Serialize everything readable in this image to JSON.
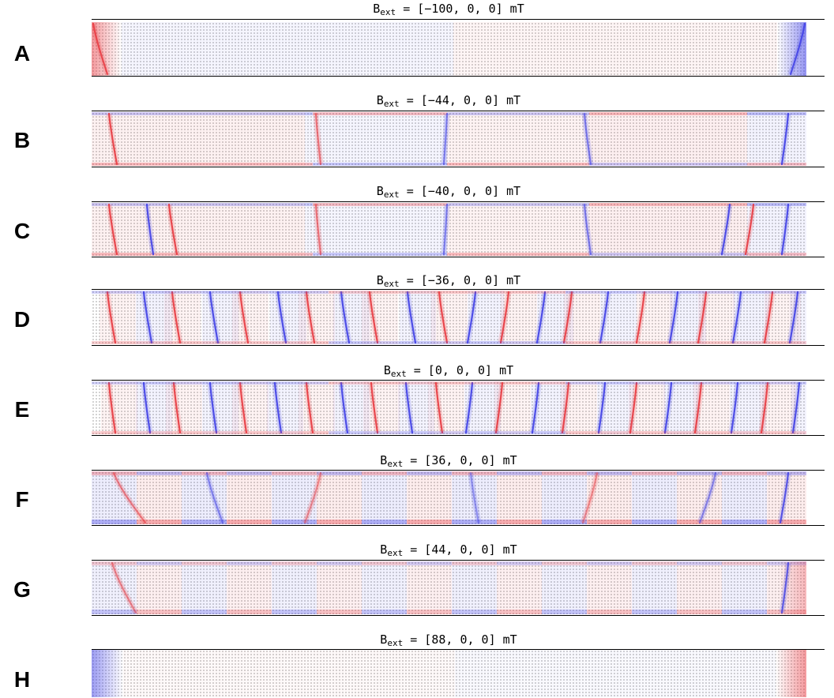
{
  "panels": [
    {
      "letter": "A",
      "label": "B",
      "sub": "ext",
      "eq": " = [−100, 0, 0] mT",
      "pattern": "edges-A"
    },
    {
      "letter": "B",
      "label": "B",
      "sub": "ext",
      "eq": " = [−44, 0, 0] mT",
      "pattern": "sparse-B"
    },
    {
      "letter": "C",
      "label": "B",
      "sub": "ext",
      "eq": " = [−40, 0, 0] mT",
      "pattern": "sparse-C"
    },
    {
      "letter": "D",
      "label": "B",
      "sub": "ext",
      "eq": " = [−36, 0, 0] mT",
      "pattern": "dense-D"
    },
    {
      "letter": "E",
      "label": "B",
      "sub": "ext",
      "eq": " = [0, 0, 0] mT",
      "pattern": "dense-E"
    },
    {
      "letter": "F",
      "label": "B",
      "sub": "ext",
      "eq": " = [36, 0, 0] mT",
      "pattern": "mixed-F"
    },
    {
      "letter": "G",
      "label": "B",
      "sub": "ext",
      "eq": " = [44, 0, 0] mT",
      "pattern": "mixed-G"
    },
    {
      "letter": "H",
      "label": "B",
      "sub": "ext",
      "eq": " = [88, 0, 0] mT",
      "pattern": "edges-H"
    }
  ],
  "colors": {
    "positive": "#e8323a",
    "negative": "#3a3ae6",
    "dots": "#555555",
    "rule": "#000000"
  }
}
